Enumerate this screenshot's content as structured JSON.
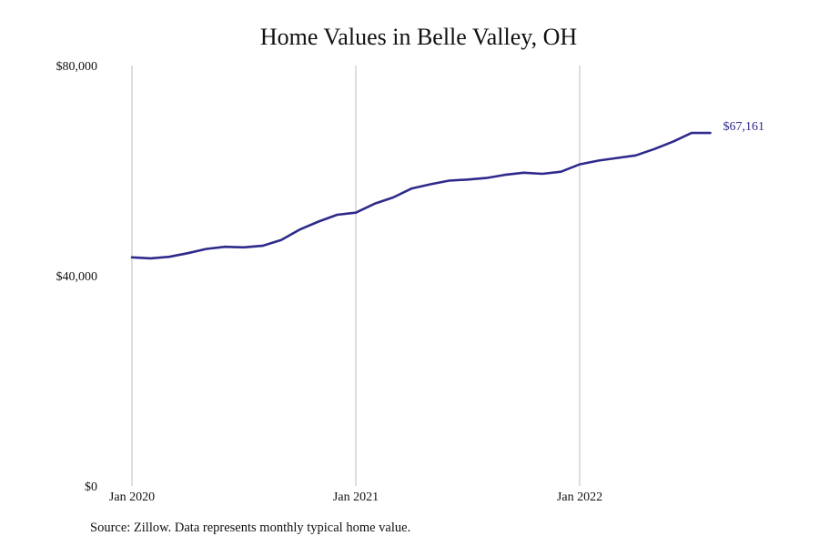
{
  "chart_data": {
    "type": "line",
    "title": "Home Values in Belle Valley, OH",
    "xlabel": "",
    "ylabel": "",
    "x_ticks": [
      "Jan 2020",
      "Jan 2021",
      "Jan 2022"
    ],
    "y_ticks": [
      "$0",
      "$40,000",
      "$80,000"
    ],
    "ylim": [
      0,
      80000
    ],
    "grid": "vertical lines at x-axis ticks",
    "end_label": "$67,161",
    "line_color": "#2e2a8c",
    "grid_color": "#bdbdbd",
    "series": [
      {
        "x": [
          "2020-01",
          "2020-02",
          "2020-03",
          "2020-04",
          "2020-05",
          "2020-06",
          "2020-07",
          "2020-08",
          "2020-09",
          "2020-10",
          "2020-11",
          "2020-12",
          "2021-01",
          "2021-02",
          "2021-03",
          "2021-04",
          "2021-05",
          "2021-06",
          "2021-07",
          "2021-08",
          "2021-09",
          "2021-10",
          "2021-11",
          "2021-12",
          "2022-01",
          "2022-02",
          "2022-03",
          "2022-04",
          "2022-05",
          "2022-06",
          "2022-07",
          "2022-08"
        ],
        "values": [
          43500,
          43300,
          43600,
          44300,
          45100,
          45500,
          45400,
          45700,
          46800,
          48800,
          50300,
          51600,
          52000,
          53700,
          54900,
          56600,
          57400,
          58100,
          58300,
          58600,
          59200,
          59600,
          59400,
          59800,
          61200,
          61900,
          62400,
          62900,
          64100,
          65500,
          67161,
          67161
        ]
      }
    ]
  },
  "source": "Source: Zillow. Data represents monthly typical home value."
}
